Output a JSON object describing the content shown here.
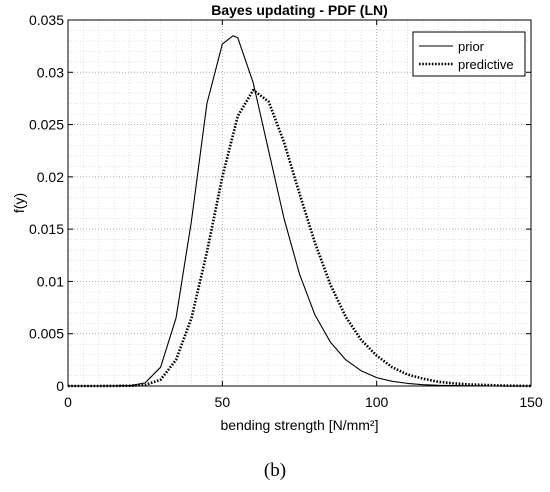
{
  "chart_data": {
    "type": "line",
    "title": "Bayes updating - PDF (LN)",
    "xlabel": "bending strength [N/mm²]",
    "ylabel": "f(y)",
    "xlim": [
      0,
      150
    ],
    "ylim": [
      0,
      0.035
    ],
    "xticks": [
      0,
      50,
      100,
      150
    ],
    "xtick_labels": [
      "0",
      "50",
      "100",
      "150"
    ],
    "yticks": [
      0,
      0.005,
      0.01,
      0.015,
      0.02,
      0.025,
      0.03,
      0.035
    ],
    "ytick_labels": [
      "0",
      "0.005",
      "0.01",
      "0.015",
      "0.02",
      "0.025",
      "0.03",
      "0.035"
    ],
    "grid": "major and minor, dotted",
    "legend": "top-right",
    "series": [
      {
        "name": "prior",
        "style": "solid",
        "x": [
          0,
          10,
          20,
          25,
          30,
          35,
          40,
          45,
          50,
          53.5,
          55,
          60,
          65,
          70,
          75,
          80,
          85,
          90,
          95,
          100,
          105,
          110,
          115,
          120,
          130,
          140,
          150
        ],
        "values": [
          0,
          0,
          3e-05,
          0.0003,
          0.0018,
          0.0065,
          0.0158,
          0.027,
          0.0327,
          0.0335,
          0.0333,
          0.029,
          0.0225,
          0.016,
          0.0107,
          0.0068,
          0.0042,
          0.0025,
          0.00145,
          0.0008,
          0.00045,
          0.00025,
          0.00013,
          7e-05,
          2e-05,
          0,
          0
        ]
      },
      {
        "name": "predictive",
        "style": "dotted",
        "x": [
          0,
          10,
          20,
          25,
          30,
          35,
          40,
          45,
          50,
          55,
          60,
          65,
          70,
          75,
          80,
          85,
          90,
          95,
          100,
          105,
          110,
          115,
          120,
          125,
          130,
          140,
          150
        ],
        "values": [
          0,
          0,
          2e-05,
          0.0001,
          0.0006,
          0.0025,
          0.0065,
          0.0128,
          0.02,
          0.0258,
          0.0283,
          0.0272,
          0.0233,
          0.0184,
          0.0137,
          0.0097,
          0.0066,
          0.0044,
          0.0029,
          0.0018,
          0.0011,
          0.0007,
          0.0004,
          0.00025,
          0.00015,
          5e-05,
          0
        ]
      }
    ]
  },
  "caption": "(b)"
}
